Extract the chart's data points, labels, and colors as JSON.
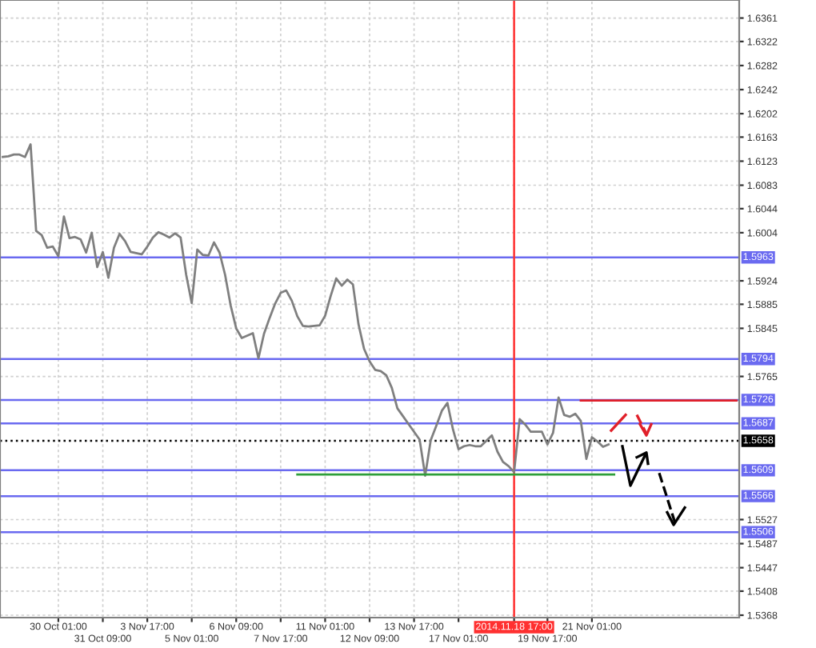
{
  "chart_data": {
    "type": "line",
    "categories": [
      null,
      null,
      null,
      null,
      null,
      null,
      null,
      null,
      null,
      null,
      "30 Oct 01:00",
      null,
      null,
      null,
      null,
      null,
      null,
      null,
      "31 Oct 09:00",
      null,
      null,
      null,
      null,
      null,
      null,
      null,
      "3 Nov 17:00",
      null,
      null,
      null,
      null,
      null,
      null,
      null,
      "5 Nov 01:00",
      null,
      null,
      null,
      null,
      null,
      null,
      null,
      "6 Nov 09:00",
      null,
      null,
      null,
      null,
      null,
      null,
      null,
      "7 Nov 17:00",
      null,
      null,
      null,
      null,
      null,
      null,
      null,
      "11 Nov 01:00",
      null,
      null,
      null,
      null,
      null,
      null,
      null,
      "12 Nov 09:00",
      null,
      null,
      null,
      null,
      null,
      null,
      null,
      "13 Nov 17:00",
      null,
      null,
      null,
      null,
      null,
      null,
      null,
      "17 Nov 01:00",
      null,
      null,
      null,
      null,
      null,
      null,
      null,
      null,
      null,
      "2014.11.18 17:00",
      null,
      null,
      null,
      null,
      null,
      "19 Nov 17:00",
      null,
      null,
      null,
      null,
      null,
      null,
      null,
      "21 Nov 01:00",
      null,
      null,
      null,
      null,
      null,
      null,
      null,
      null,
      null,
      null,
      null,
      null,
      null,
      null,
      null,
      null,
      null,
      null,
      null,
      null,
      null,
      null,
      null,
      null,
      null,
      null
    ],
    "series": [
      {
        "color": "#7f7f7f",
        "values": [
          1.613,
          1.6131,
          1.6134,
          1.6134,
          1.613,
          1.6151,
          1.6007,
          1.6,
          1.5979,
          1.5981,
          1.5965,
          1.6031,
          1.5995,
          1.5997,
          1.5993,
          1.5971,
          1.6004,
          1.5947,
          1.5972,
          1.5929,
          1.5979,
          1.6002,
          1.599,
          1.5972,
          1.597,
          1.5968,
          1.5981,
          1.5996,
          1.6005,
          1.6001,
          1.5996,
          1.6003,
          1.5996,
          1.5934,
          1.5887,
          1.5976,
          1.5967,
          1.5966,
          1.5988,
          1.5971,
          1.5934,
          1.5883,
          1.5845,
          1.5829,
          1.5833,
          1.5837,
          1.5795,
          1.5836,
          1.5862,
          1.5886,
          1.5904,
          1.5908,
          1.5891,
          1.5865,
          1.5849,
          1.5848,
          1.5849,
          1.585,
          1.5866,
          1.5899,
          1.5928,
          1.5916,
          1.5926,
          1.5918,
          1.5852,
          1.5811,
          1.579,
          1.5776,
          1.5774,
          1.5767,
          1.5746,
          1.5712,
          1.5699,
          1.5686,
          1.5673,
          1.566,
          1.56,
          1.5659,
          1.5683,
          1.5708,
          1.5721,
          1.5677,
          1.5644,
          1.5649,
          1.5651,
          1.5649,
          1.5649,
          1.5658,
          1.5667,
          1.564,
          1.5623,
          1.5616,
          1.5606,
          1.5694,
          1.5685,
          1.5673,
          1.5673,
          1.5673,
          1.5652,
          1.5671,
          1.573,
          1.5701,
          1.5698,
          1.5703,
          1.5691,
          1.5628,
          1.5664,
          1.5657,
          1.5648,
          1.5652,
          null,
          null,
          null,
          null,
          null,
          null,
          null,
          null,
          null,
          null,
          null,
          null,
          null,
          null,
          null,
          null,
          null,
          null,
          null,
          null,
          null,
          null,
          null
        ]
      },
      {
        "type": "line",
        "color": "#2e9e3a",
        "values": [
          null,
          null,
          null,
          null,
          null,
          null,
          null,
          null,
          null,
          null,
          null,
          null,
          null,
          null,
          null,
          null,
          null,
          null,
          null,
          null,
          null,
          null,
          null,
          null,
          null,
          null,
          null,
          null,
          null,
          null,
          null,
          null,
          null,
          null,
          null,
          null,
          null,
          null,
          null,
          null,
          null,
          null,
          null,
          null,
          null,
          null,
          null,
          null,
          null,
          null,
          null,
          null,
          null,
          1.5602,
          null,
          null,
          null,
          null,
          null,
          null,
          null,
          null,
          null,
          null,
          null,
          null,
          null,
          null,
          null,
          null,
          null,
          null,
          null,
          null,
          null,
          null,
          null,
          null,
          null,
          null,
          null,
          null,
          null,
          null,
          null,
          null,
          null,
          null,
          null,
          null,
          null,
          null,
          null,
          null,
          null,
          null,
          null,
          null,
          null,
          null,
          null,
          null,
          null,
          null,
          null,
          null,
          null,
          null,
          null,
          null,
          1.5602,
          null,
          null,
          null,
          null,
          null,
          null,
          null,
          null,
          null,
          null,
          null,
          null,
          null,
          null,
          null,
          null,
          null,
          null,
          null,
          null,
          null,
          null
        ]
      },
      {
        "type": "line",
        "color": "#e0202a",
        "values": [
          null,
          null,
          null,
          null,
          null,
          null,
          null,
          null,
          null,
          null,
          null,
          null,
          null,
          null,
          null,
          null,
          null,
          null,
          null,
          null,
          null,
          null,
          null,
          null,
          null,
          null,
          null,
          null,
          null,
          null,
          null,
          null,
          null,
          null,
          null,
          null,
          null,
          null,
          null,
          null,
          null,
          null,
          null,
          null,
          null,
          null,
          null,
          null,
          null,
          null,
          null,
          null,
          null,
          null,
          null,
          null,
          null,
          null,
          null,
          null,
          null,
          null,
          null,
          null,
          null,
          null,
          null,
          null,
          null,
          null,
          null,
          null,
          null,
          null,
          null,
          null,
          null,
          null,
          null,
          null,
          null,
          null,
          null,
          null,
          null,
          null,
          null,
          null,
          null,
          null,
          null,
          null,
          null,
          null,
          null,
          null,
          null,
          null,
          null,
          null,
          null,
          null,
          null,
          null,
          1.5725,
          null,
          null,
          null,
          null,
          null,
          null,
          null,
          null,
          null,
          null,
          null,
          null,
          null,
          null,
          null,
          null,
          null,
          null,
          null,
          null,
          null,
          null,
          null,
          null,
          null,
          null,
          null,
          1.5725
        ]
      }
    ],
    "ylim": [
      1.5364,
      1.6391
    ],
    "yticks": [
      1.6361,
      1.6322,
      1.6282,
      1.6242,
      1.6202,
      1.6163,
      1.6123,
      1.6083,
      1.6044,
      1.6004,
      1.5924,
      1.5885,
      1.5845,
      1.5765,
      1.5527,
      1.5487,
      1.5447,
      1.5408,
      1.5368
    ],
    "grid": true,
    "ref_lines": [
      {
        "axis": "y",
        "value": 1.5963,
        "label": "1.5963",
        "color": "#6a6af0"
      },
      {
        "axis": "y",
        "value": 1.5794,
        "label": "1.5794",
        "color": "#6a6af0"
      },
      {
        "axis": "y",
        "value": 1.5726,
        "label": "1.5726",
        "color": "#6a6af0"
      },
      {
        "axis": "y",
        "value": 1.5687,
        "label": "1.5687",
        "color": "#6a6af0"
      },
      {
        "axis": "y",
        "value": 1.5658,
        "label": "1.5658",
        "color": "#000000",
        "line_style": "dotted"
      },
      {
        "axis": "y",
        "value": 1.5609,
        "label": "1.5609",
        "color": "#6a6af0"
      },
      {
        "axis": "y",
        "value": 1.5566,
        "label": "1.5566",
        "color": "#6a6af0"
      },
      {
        "axis": "y",
        "value": 1.5506,
        "label": "1.5506",
        "color": "#6a6af0"
      },
      {
        "axis": "x",
        "value": "2014.11.18 17:00",
        "color": "#ff3030"
      }
    ]
  }
}
